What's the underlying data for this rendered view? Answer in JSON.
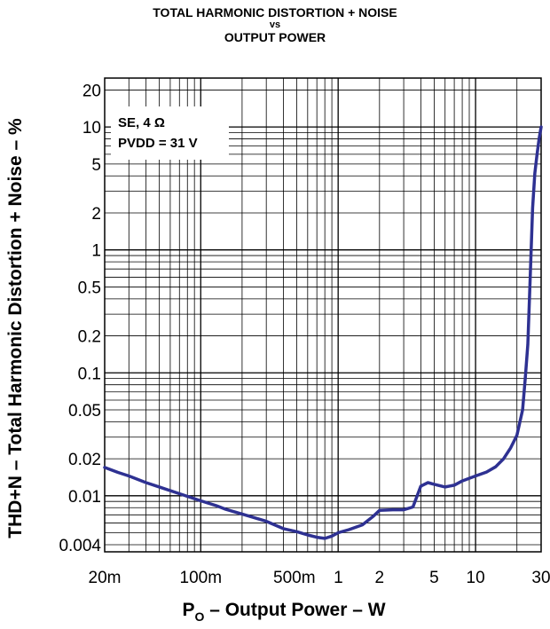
{
  "chart_data": {
    "type": "line",
    "title_lines": [
      "TOTAL HARMONIC DISTORTION + NOISE",
      "vs",
      "OUTPUT POWER"
    ],
    "xlabel": {
      "main": "P",
      "sub": "O",
      "rest": " – Output Power – W"
    },
    "ylabel": "THD+N – Total Harmonic Distortion + Noise – %",
    "xscale": "log",
    "yscale": "log",
    "xlim": [
      0.02,
      30
    ],
    "ylim": [
      0.0035,
      25
    ],
    "grid": true,
    "x_ticks": [
      {
        "value": 0.02,
        "label": "20m"
      },
      {
        "value": 0.1,
        "label": "100m"
      },
      {
        "value": 0.5,
        "label": "500m"
      },
      {
        "value": 1,
        "label": "1"
      },
      {
        "value": 2,
        "label": "2"
      },
      {
        "value": 5,
        "label": "5"
      },
      {
        "value": 10,
        "label": "10"
      },
      {
        "value": 30,
        "label": "30"
      }
    ],
    "y_ticks": [
      {
        "value": 0.004,
        "label": "0.004"
      },
      {
        "value": 0.01,
        "label": "0.01"
      },
      {
        "value": 0.02,
        "label": "0.02"
      },
      {
        "value": 0.05,
        "label": "0.05"
      },
      {
        "value": 0.1,
        "label": "0.1"
      },
      {
        "value": 0.2,
        "label": "0.2"
      },
      {
        "value": 0.5,
        "label": "0.5"
      },
      {
        "value": 1,
        "label": "1"
      },
      {
        "value": 2,
        "label": "2"
      },
      {
        "value": 5,
        "label": "5"
      },
      {
        "value": 10,
        "label": "10"
      },
      {
        "value": 20,
        "label": "20"
      }
    ],
    "legend": {
      "placement": "top-left",
      "line1": "SE, 4 Ω",
      "line2": "PVDD = 31 V"
    },
    "series": [
      {
        "color": "#2e3192",
        "points": [
          [
            0.02,
            0.017
          ],
          [
            0.025,
            0.0155
          ],
          [
            0.03,
            0.0145
          ],
          [
            0.04,
            0.0128
          ],
          [
            0.05,
            0.0118
          ],
          [
            0.07,
            0.0104
          ],
          [
            0.1,
            0.0091
          ],
          [
            0.13,
            0.0083
          ],
          [
            0.15,
            0.0078
          ],
          [
            0.2,
            0.0071
          ],
          [
            0.3,
            0.0062
          ],
          [
            0.4,
            0.0054
          ],
          [
            0.5,
            0.0051
          ],
          [
            0.6,
            0.0048
          ],
          [
            0.7,
            0.0046
          ],
          [
            0.8,
            0.0045
          ],
          [
            0.9,
            0.0047
          ],
          [
            1.0,
            0.005
          ],
          [
            1.2,
            0.0053
          ],
          [
            1.5,
            0.0058
          ],
          [
            1.8,
            0.0068
          ],
          [
            2.0,
            0.0076
          ],
          [
            2.5,
            0.0077
          ],
          [
            3.0,
            0.0077
          ],
          [
            3.5,
            0.0081
          ],
          [
            4.0,
            0.012
          ],
          [
            4.5,
            0.0128
          ],
          [
            5.0,
            0.0124
          ],
          [
            6.0,
            0.0118
          ],
          [
            7.0,
            0.0122
          ],
          [
            8.0,
            0.0132
          ],
          [
            10.0,
            0.0145
          ],
          [
            12.0,
            0.0156
          ],
          [
            14.0,
            0.0172
          ],
          [
            16.0,
            0.02
          ],
          [
            18.0,
            0.0245
          ],
          [
            20.0,
            0.031
          ],
          [
            22.0,
            0.05
          ],
          [
            23.0,
            0.09
          ],
          [
            24.0,
            0.17
          ],
          [
            25.0,
            0.6
          ],
          [
            26.0,
            2.2
          ],
          [
            27.0,
            4.2
          ],
          [
            28.0,
            6.0
          ],
          [
            29.0,
            8.0
          ],
          [
            30.0,
            10.0
          ]
        ]
      }
    ]
  }
}
